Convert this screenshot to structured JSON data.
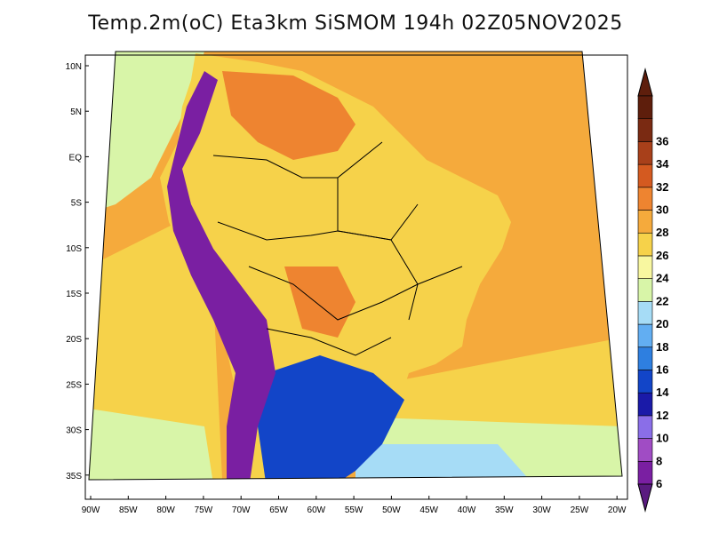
{
  "title": "Temp.2m(oC) Eta3km SiSMOM 194h 02Z05NOV2025",
  "lat_ticks": [
    "10N",
    "5N",
    "EQ",
    "5S",
    "10S",
    "15S",
    "20S",
    "25S",
    "30S",
    "35S"
  ],
  "lon_ticks": [
    "90W",
    "85W",
    "80W",
    "75W",
    "70W",
    "65W",
    "60W",
    "55W",
    "50W",
    "45W",
    "40W",
    "35W",
    "30W",
    "25W",
    "20W"
  ],
  "colorbar": {
    "labels": [
      "6",
      "8",
      "10",
      "12",
      "14",
      "16",
      "18",
      "20",
      "22",
      "24",
      "26",
      "28",
      "30",
      "32",
      "34",
      "36"
    ],
    "colors": [
      "#7a1fa2",
      "#a04cc4",
      "#8a6ee8",
      "#1a1aa8",
      "#1245c8",
      "#2e7fe0",
      "#62aef2",
      "#a6dcf6",
      "#d8f5a8",
      "#f8f7a0",
      "#f6d24a",
      "#f5aa3c",
      "#ee8430",
      "#d45a20",
      "#a8401a",
      "#7a2a12",
      "#5e1e0c"
    ],
    "under_color": "#5a1b80"
  },
  "map_colors": {
    "ocean_warm": "#f5aa3c",
    "ocean_mild": "#f6d24a",
    "ocean_cool": "#f8f7a0",
    "ocean_cold": "#d8f5a8",
    "ocean_coldest": "#a6dcf6",
    "land": "#f6d24a",
    "land_hot": "#ee8430",
    "andes": "#7a1fa2",
    "south_cold": "#1245c8",
    "border": "#000000"
  }
}
